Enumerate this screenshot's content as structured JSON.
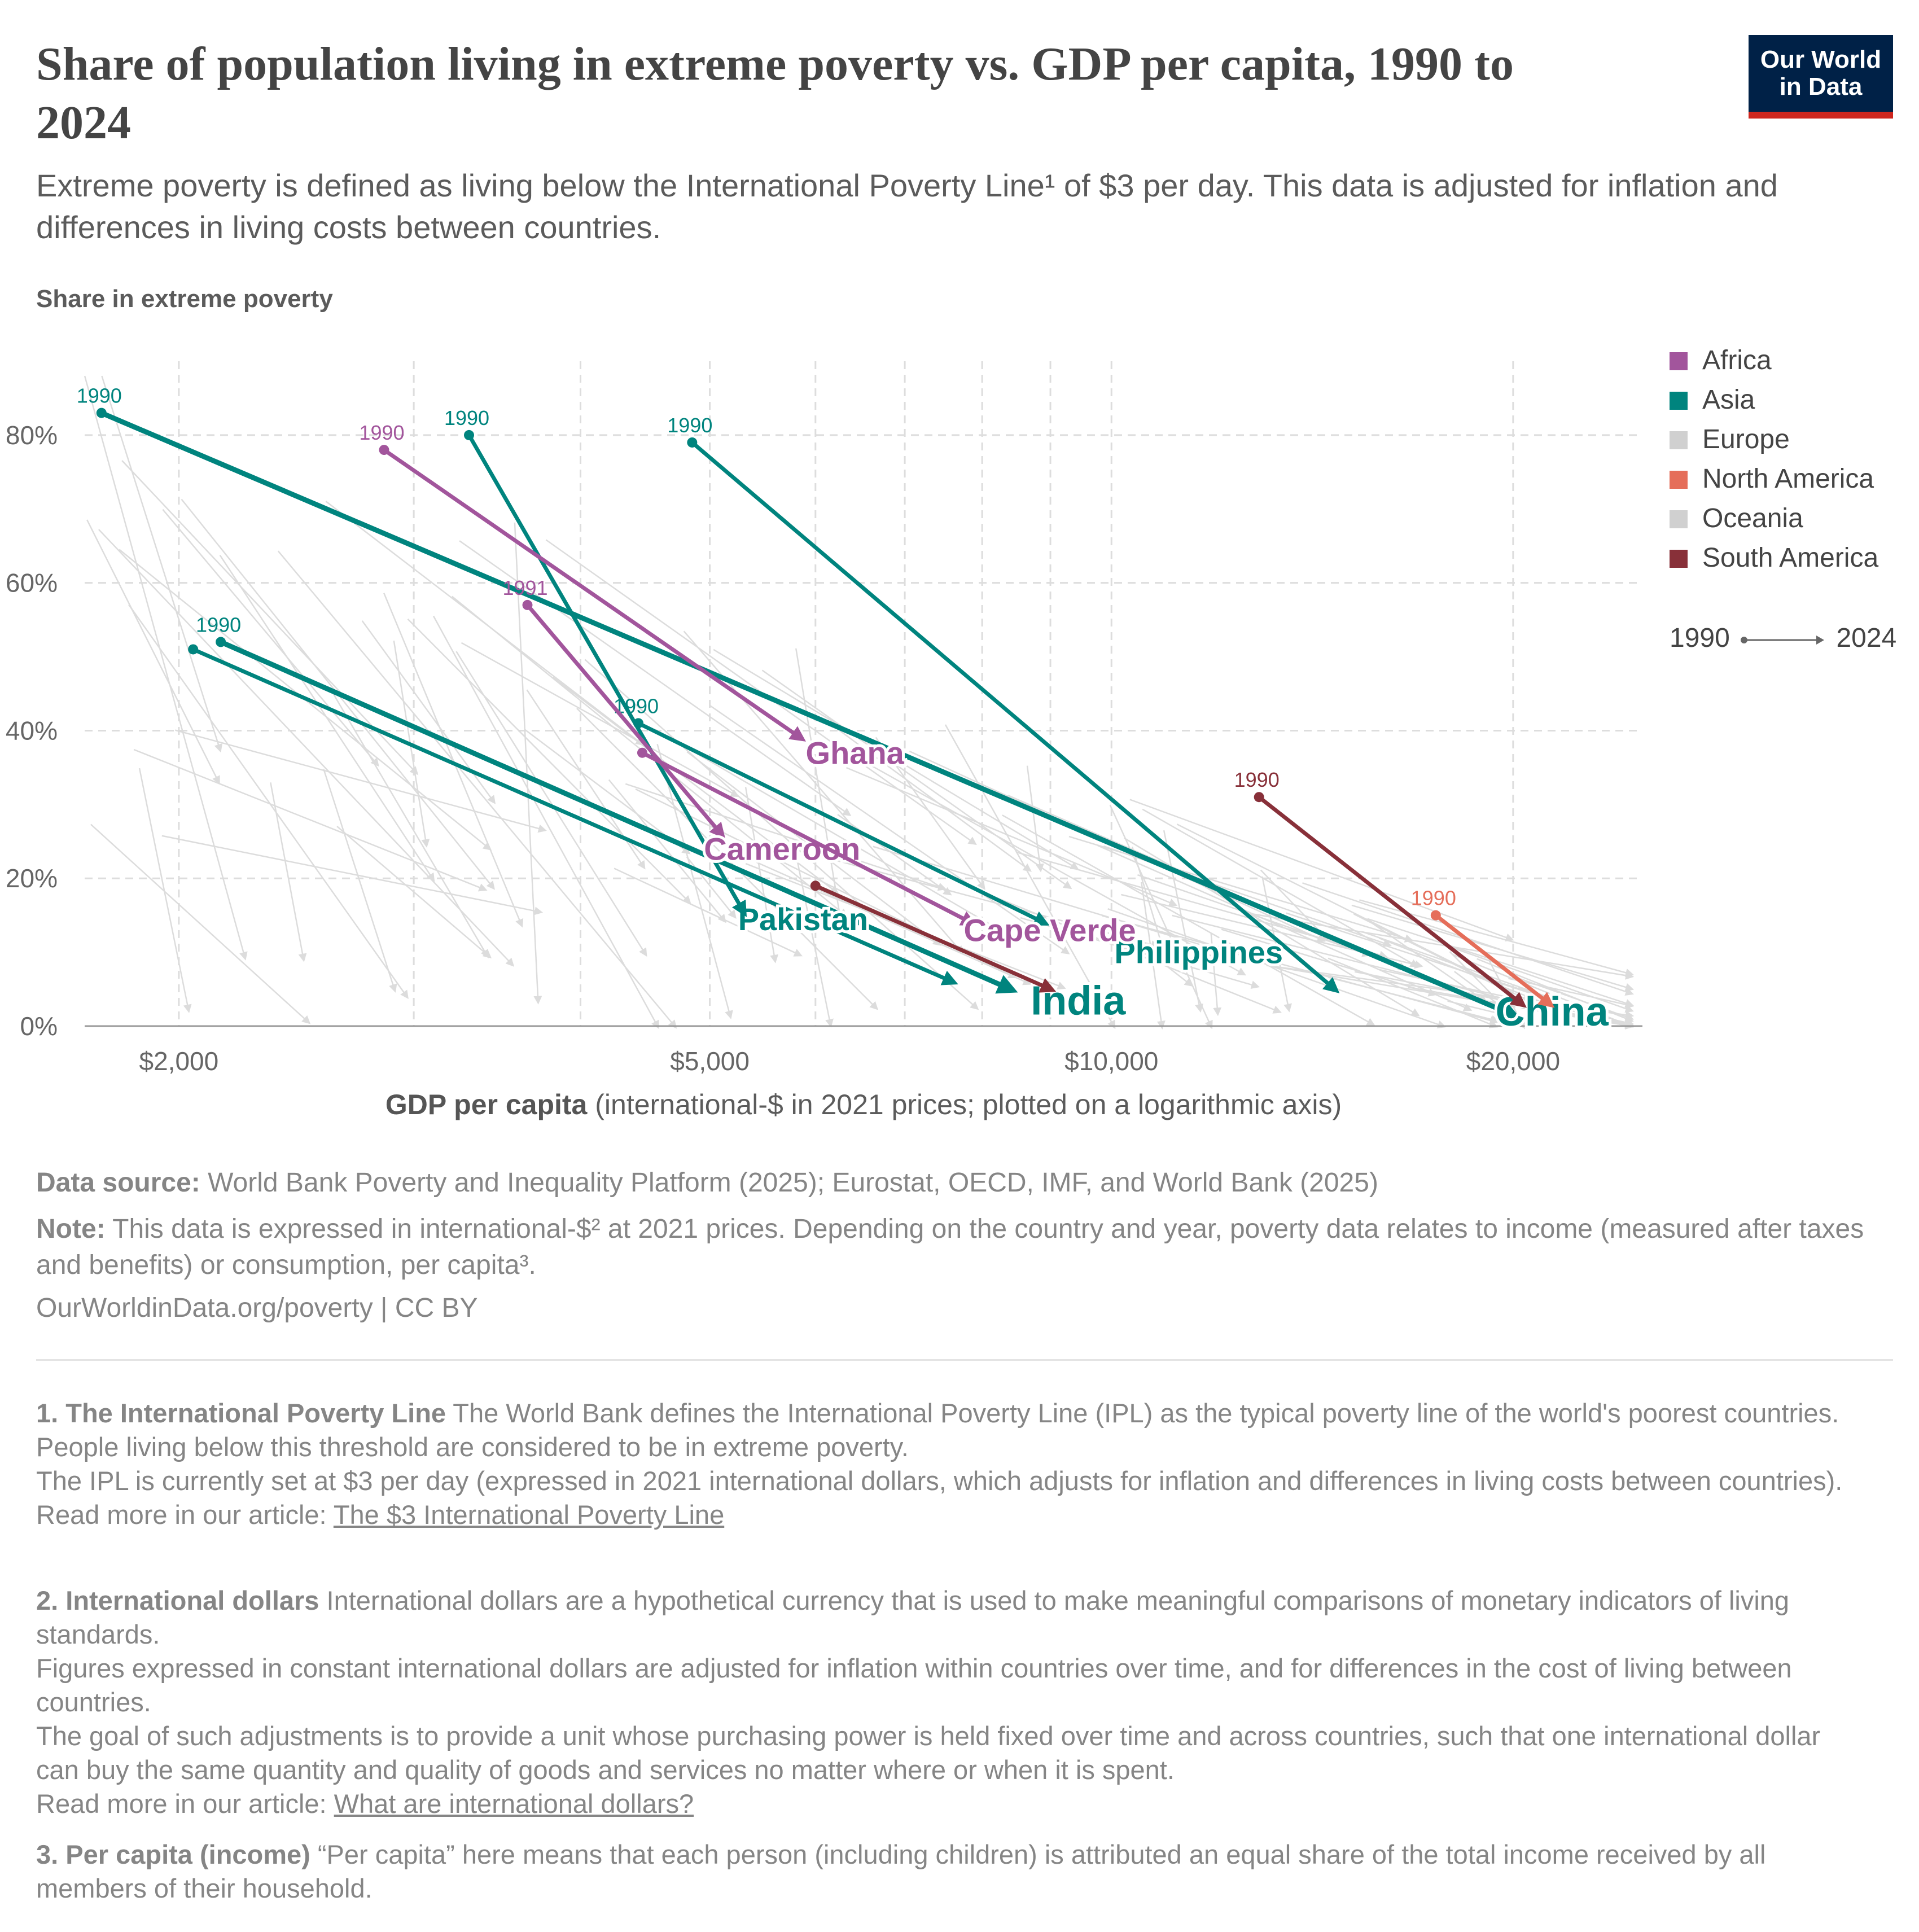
{
  "header": {
    "title": "Share of population living in extreme poverty vs. GDP per capita, 1990 to 2024",
    "subtitle": "Extreme poverty is defined as living below the International Poverty Line¹ of $3 per day. This data is adjusted for inflation and differences in living costs between countries.",
    "logo_line1": "Our World",
    "logo_line2": "in Data"
  },
  "colors": {
    "africa": "#a2559c",
    "asia": "#00847e",
    "europe": "#d0d0d0",
    "north_america": "#e56e5a",
    "oceania": "#d0d0d0",
    "south_america": "#883039",
    "background_lines": "#dcdcdc",
    "grid": "#dddddd"
  },
  "legend": {
    "items": [
      {
        "label": "Africa",
        "color": "#a2559c"
      },
      {
        "label": "Asia",
        "color": "#00847e"
      },
      {
        "label": "Europe",
        "color": "#d0d0d0"
      },
      {
        "label": "North America",
        "color": "#e56e5a"
      },
      {
        "label": "Oceania",
        "color": "#d0d0d0"
      },
      {
        "label": "South America",
        "color": "#883039"
      }
    ],
    "time_start": "1990",
    "time_end": "2024"
  },
  "chart_data": {
    "type": "scatter",
    "title": "Share of population living in extreme poverty vs. GDP per capita, 1990 to 2024",
    "ylabel": "Share in extreme poverty",
    "xlabel_bold": "GDP per capita",
    "xlabel_rest": " (international-$ in 2021 prices; plotted on a logarithmic axis)",
    "x_scale": "log",
    "xlim": [
      1700,
      25000
    ],
    "ylim": [
      0,
      90
    ],
    "x_ticks": [
      {
        "value": 2000,
        "label": "$2,000"
      },
      {
        "value": 5000,
        "label": "$5,000"
      },
      {
        "value": 10000,
        "label": "$10,000"
      },
      {
        "value": 20000,
        "label": "$20,000"
      }
    ],
    "x_minor_gridlines": [
      3000,
      4000,
      6000,
      7000,
      8000,
      9000
    ],
    "y_ticks": [
      {
        "value": 0,
        "label": "0%"
      },
      {
        "value": 20,
        "label": "20%"
      },
      {
        "value": 40,
        "label": "40%"
      },
      {
        "value": 60,
        "label": "60%"
      },
      {
        "value": 80,
        "label": "80%"
      }
    ],
    "series": [
      {
        "name": "China",
        "region": "asia",
        "start_label": "1990",
        "start": {
          "x": 1750,
          "y": 83
        },
        "end": {
          "x": 20000,
          "y": 1.5
        },
        "label_at": {
          "x": 19400,
          "y": 2
        },
        "label_size": "big"
      },
      {
        "name": "India",
        "region": "asia",
        "start_label": "1990",
        "start": {
          "x": 2150,
          "y": 52
        },
        "end": {
          "x": 8400,
          "y": 5
        },
        "label_at": {
          "x": 8700,
          "y": 3.5
        },
        "label_size": "big"
      },
      {
        "name": "Pakistan",
        "region": "asia",
        "start_label": "",
        "start": {
          "x": 2050,
          "y": 51
        },
        "end": {
          "x": 7600,
          "y": 6
        },
        "label_at": {
          "x": 5250,
          "y": 14.5
        },
        "label_size": "mid"
      },
      {
        "name": "",
        "region": "asia",
        "start_label": "1990",
        "start": {
          "x": 3300,
          "y": 80
        },
        "end": {
          "x": 5300,
          "y": 15.5
        },
        "label_at": null,
        "label_size": "none"
      },
      {
        "name": "Philippines",
        "region": "asia",
        "start_label": "1990",
        "start": {
          "x": 4850,
          "y": 79
        },
        "end": {
          "x": 14700,
          "y": 5
        },
        "label_at": {
          "x": 10050,
          "y": 10
        },
        "label_size": "mid"
      },
      {
        "name": "",
        "region": "asia",
        "start_label": "1990",
        "start": {
          "x": 4420,
          "y": 41
        },
        "end": {
          "x": 8900,
          "y": 14
        },
        "label_at": null,
        "label_size": "none"
      },
      {
        "name": "Ghana",
        "region": "africa",
        "start_label": "1990",
        "start": {
          "x": 2850,
          "y": 78
        },
        "end": {
          "x": 5850,
          "y": 39
        },
        "label_at": {
          "x": 5900,
          "y": 37
        },
        "label_size": "mid"
      },
      {
        "name": "Cameroon",
        "region": "africa",
        "start_label": "1991",
        "start": {
          "x": 3650,
          "y": 57
        },
        "end": {
          "x": 5100,
          "y": 26
        },
        "label_at": {
          "x": 4950,
          "y": 24
        },
        "label_size": "mid"
      },
      {
        "name": "Cape Verde",
        "region": "africa",
        "start_label": "",
        "start": {
          "x": 4450,
          "y": 37
        },
        "end": {
          "x": 7850,
          "y": 14
        },
        "label_at": {
          "x": 7750,
          "y": 13
        },
        "label_size": "mid"
      },
      {
        "name": "",
        "region": "south_america",
        "start_label": "",
        "start": {
          "x": 6000,
          "y": 19
        },
        "end": {
          "x": 9000,
          "y": 5
        },
        "label_at": null,
        "label_size": "none"
      },
      {
        "name": "",
        "region": "south_america",
        "start_label": "1990",
        "start": {
          "x": 12900,
          "y": 31
        },
        "end": {
          "x": 20300,
          "y": 3
        },
        "label_at": null,
        "label_size": "none"
      },
      {
        "name": "",
        "region": "north_america",
        "start_label": "1990",
        "start": {
          "x": 17500,
          "y": 15
        },
        "end": {
          "x": 21300,
          "y": 3
        },
        "label_at": null,
        "label_size": "none"
      }
    ]
  },
  "footer": {
    "source_label": "Data source:",
    "source_text": " World Bank Poverty and Inequality Platform (2025); Eurostat, OECD, IMF, and World Bank (2025)",
    "note_label": "Note:",
    "note_text": " This data is expressed in international-$² at 2021 prices. Depending on the country and year, poverty data relates to income (measured after taxes and benefits) or consumption, per capita³.",
    "url_text": "OurWorldinData.org/poverty | CC BY"
  },
  "notes": {
    "n1_title": "1. The International Poverty Line",
    "n1_p1": " The World Bank defines the International Poverty Line (IPL) as the typical poverty line of the world's poorest countries. People living below this threshold are considered to be in extreme poverty.",
    "n1_p2": "The IPL is currently set at $3 per day (expressed in 2021 international dollars, which adjusts for inflation and differences in living costs between countries).",
    "n1_read": "Read more in our article: ",
    "n1_link": "The $3 International Poverty Line",
    "n2_title": "2. International dollars",
    "n2_p1": " International dollars are a hypothetical currency that is used to make meaningful comparisons of monetary indicators of living standards.",
    "n2_p2": "Figures expressed in constant international dollars are adjusted for inflation within countries over time, and for differences in the cost of living between countries.",
    "n2_p3": "The goal of such adjustments is to provide a unit whose purchasing power is held fixed over time and across countries, such that one international dollar can buy the same quantity and quality of goods and services no matter where or when it is spent.",
    "n2_read": "Read more in our article: ",
    "n2_link": "What are international dollars?",
    "n3_title": "3. Per capita (income)",
    "n3_p1": " “Per capita” here means that each person (including children) is attributed an equal share of the total income received by all members of their household."
  }
}
